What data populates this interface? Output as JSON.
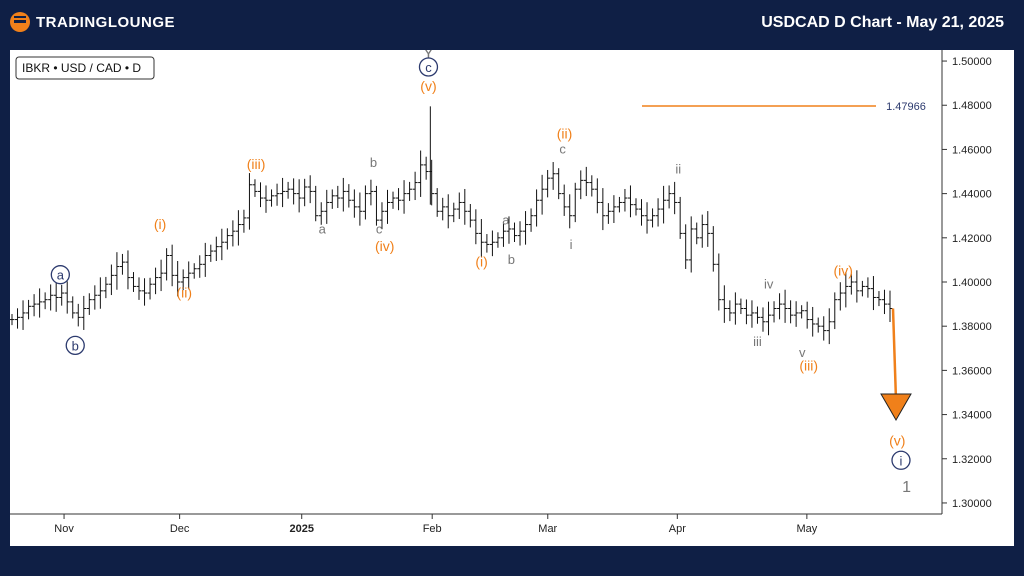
{
  "header": {
    "logo_text": "TradingLounge",
    "title": "USDCAD D Chart - May 21, 2025"
  },
  "chart_data": {
    "type": "candlestick",
    "symbol_label": "IBKR • USD / CAD • D",
    "ylim": [
      1.295,
      1.505
    ],
    "y_ticks": [
      "1.50000",
      "1.48000",
      "1.46000",
      "1.44000",
      "1.42000",
      "1.40000",
      "1.38000",
      "1.36000",
      "1.34000",
      "1.32000",
      "1.30000"
    ],
    "x_ticks": [
      {
        "label": "Nov",
        "bold": false
      },
      {
        "label": "Dec",
        "bold": false
      },
      {
        "label": "2025",
        "bold": true
      },
      {
        "label": "Feb",
        "bold": false
      },
      {
        "label": "Mar",
        "bold": false
      },
      {
        "label": "Apr",
        "bold": false
      },
      {
        "label": "May",
        "bold": false
      }
    ],
    "level_line": {
      "value": 1.47966,
      "label": "1.47966",
      "color": "#f0801a"
    },
    "projection": {
      "from": 1.388,
      "to": 1.343,
      "color": "#f0801a"
    },
    "colors": {
      "price": "#111111",
      "navy": "#2c3a6e",
      "orange": "#f0801a",
      "gray": "#777777"
    },
    "price_series": [
      1.383,
      1.384,
      1.386,
      1.389,
      1.39,
      1.391,
      1.392,
      1.394,
      1.393,
      1.395,
      1.391,
      1.386,
      1.384,
      1.388,
      1.392,
      1.394,
      1.396,
      1.399,
      1.403,
      1.407,
      1.409,
      1.402,
      1.398,
      1.396,
      1.395,
      1.399,
      1.402,
      1.404,
      1.412,
      1.403,
      1.4,
      1.402,
      1.404,
      1.406,
      1.408,
      1.412,
      1.414,
      1.416,
      1.418,
      1.421,
      1.423,
      1.426,
      1.429,
      1.444,
      1.441,
      1.438,
      1.437,
      1.439,
      1.44,
      1.441,
      1.442,
      1.44,
      1.438,
      1.443,
      1.441,
      1.43,
      1.432,
      1.436,
      1.439,
      1.438,
      1.441,
      1.437,
      1.434,
      1.432,
      1.44,
      1.441,
      1.428,
      1.432,
      1.436,
      1.438,
      1.437,
      1.44,
      1.442,
      1.445,
      1.453,
      1.45,
      1.44,
      1.432,
      1.434,
      1.43,
      1.433,
      1.436,
      1.432,
      1.428,
      1.422,
      1.418,
      1.417,
      1.418,
      1.42,
      1.423,
      1.424,
      1.421,
      1.423,
      1.426,
      1.43,
      1.437,
      1.442,
      1.447,
      1.449,
      1.44,
      1.434,
      1.43,
      1.442,
      1.446,
      1.445,
      1.442,
      1.436,
      1.43,
      1.432,
      1.434,
      1.436,
      1.438,
      1.435,
      1.433,
      1.43,
      1.428,
      1.43,
      1.433,
      1.437,
      1.44,
      1.436,
      1.422,
      1.41,
      1.424,
      1.42,
      1.426,
      1.422,
      1.408,
      1.392,
      1.388,
      1.386,
      1.39,
      1.388,
      1.385,
      1.386,
      1.384,
      1.382,
      1.385,
      1.388,
      1.39,
      1.388,
      1.385,
      1.386,
      1.387,
      1.383,
      1.381,
      1.38,
      1.378,
      1.382,
      1.392,
      1.395,
      1.398,
      1.4,
      1.396,
      1.398,
      1.397,
      1.393,
      1.392,
      1.39,
      1.388
    ],
    "wave_labels": [
      {
        "text": "Y",
        "x_frac": 0.449,
        "value": 1.5015,
        "color": "gray",
        "size": 16,
        "circled": false
      },
      {
        "text": "c",
        "x_frac": 0.449,
        "value": 1.4955,
        "color": "navy",
        "size": 13,
        "circled": true
      },
      {
        "text": "(v)",
        "x_frac": 0.449,
        "value": 1.487,
        "color": "orange",
        "size": 14,
        "circled": false
      },
      {
        "text": "(ii)",
        "x_frac": 0.595,
        "value": 1.4655,
        "color": "orange",
        "size": 14,
        "circled": false
      },
      {
        "text": "c",
        "x_frac": 0.593,
        "value": 1.4585,
        "color": "gray",
        "size": 13,
        "circled": false
      },
      {
        "text": "ii",
        "x_frac": 0.717,
        "value": 1.4495,
        "color": "gray",
        "size": 13,
        "circled": false
      },
      {
        "text": "(iii)",
        "x_frac": 0.264,
        "value": 1.4515,
        "color": "orange",
        "size": 14,
        "circled": false
      },
      {
        "text": "b",
        "x_frac": 0.39,
        "value": 1.4525,
        "color": "gray",
        "size": 13,
        "circled": false
      },
      {
        "text": "a",
        "x_frac": 0.335,
        "value": 1.4225,
        "color": "gray",
        "size": 13,
        "circled": false
      },
      {
        "text": "c",
        "x_frac": 0.396,
        "value": 1.4225,
        "color": "gray",
        "size": 13,
        "circled": false
      },
      {
        "text": "(iv)",
        "x_frac": 0.402,
        "value": 1.4145,
        "color": "orange",
        "size": 14,
        "circled": false
      },
      {
        "text": "(i)",
        "x_frac": 0.161,
        "value": 1.4245,
        "color": "orange",
        "size": 14,
        "circled": false
      },
      {
        "text": "(ii)",
        "x_frac": 0.187,
        "value": 1.3935,
        "color": "orange",
        "size": 14,
        "circled": false
      },
      {
        "text": "a",
        "x_frac": 0.054,
        "value": 1.4015,
        "color": "navy",
        "size": 13,
        "circled": true
      },
      {
        "text": "b",
        "x_frac": 0.07,
        "value": 1.3695,
        "color": "navy",
        "size": 13,
        "circled": true
      },
      {
        "text": "a",
        "x_frac": 0.532,
        "value": 1.4265,
        "color": "gray",
        "size": 13,
        "circled": false
      },
      {
        "text": "b",
        "x_frac": 0.538,
        "value": 1.4085,
        "color": "gray",
        "size": 13,
        "circled": false
      },
      {
        "text": "(i)",
        "x_frac": 0.506,
        "value": 1.4075,
        "color": "orange",
        "size": 14,
        "circled": false
      },
      {
        "text": "i",
        "x_frac": 0.602,
        "value": 1.4155,
        "color": "gray",
        "size": 13,
        "circled": false
      },
      {
        "text": "(iv)",
        "x_frac": 0.894,
        "value": 1.4035,
        "color": "orange",
        "size": 14,
        "circled": false
      },
      {
        "text": "iv",
        "x_frac": 0.814,
        "value": 1.3975,
        "color": "gray",
        "size": 13,
        "circled": false
      },
      {
        "text": "iii",
        "x_frac": 0.802,
        "value": 1.3715,
        "color": "gray",
        "size": 13,
        "circled": false
      },
      {
        "text": "v",
        "x_frac": 0.85,
        "value": 1.3665,
        "color": "gray",
        "size": 13,
        "circled": false
      },
      {
        "text": "(iii)",
        "x_frac": 0.857,
        "value": 1.3605,
        "color": "orange",
        "size": 14,
        "circled": false
      },
      {
        "text": "(v)",
        "x_frac": 0.952,
        "value": 1.3265,
        "color": "orange",
        "size": 14,
        "circled": false
      },
      {
        "text": "i",
        "x_frac": 0.956,
        "value": 1.3175,
        "color": "navy",
        "size": 13,
        "circled": true
      },
      {
        "text": "1",
        "x_frac": 0.962,
        "value": 1.3055,
        "color": "gray",
        "size": 16,
        "circled": false
      }
    ]
  }
}
